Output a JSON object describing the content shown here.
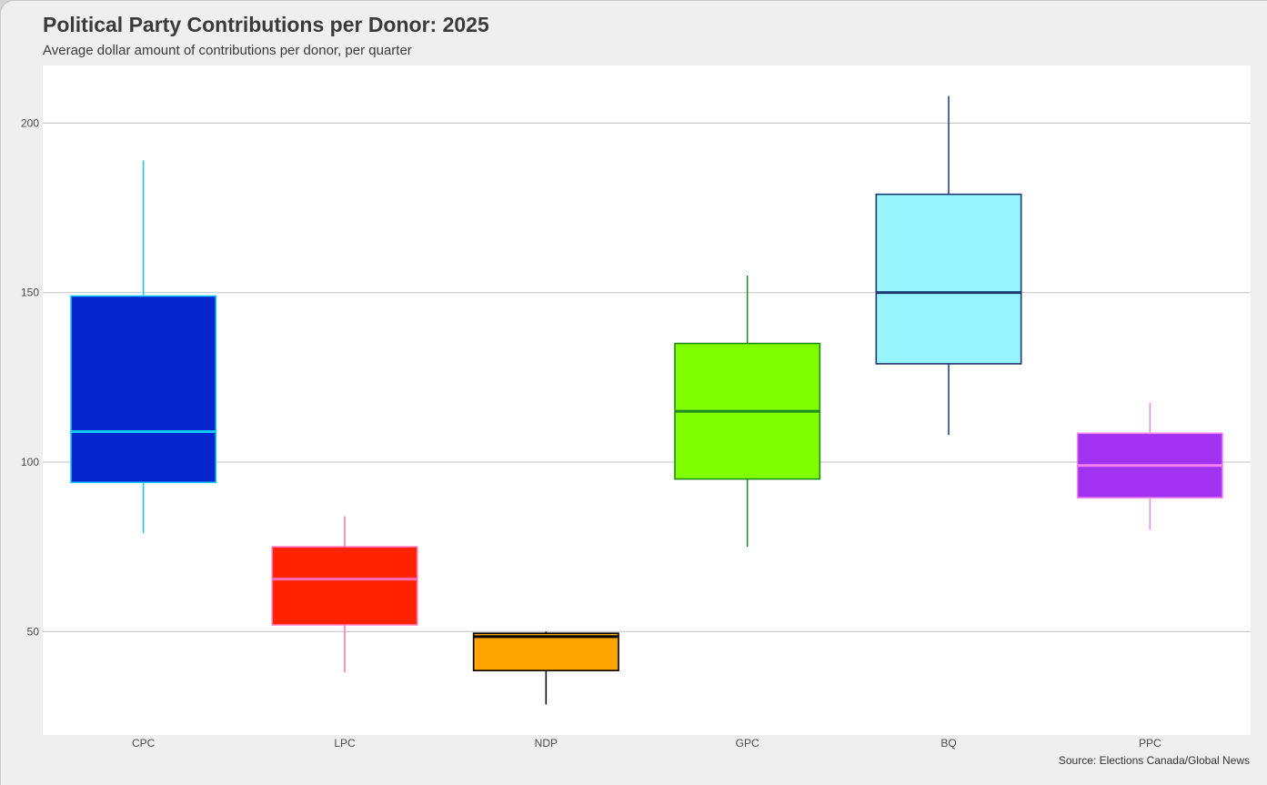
{
  "header": {
    "title": "Political Party Contributions per Donor: 2025",
    "subtitle": "Average dollar amount of contributions per donor, per quarter"
  },
  "footer": {
    "caption": "Source: Elections Canada/Global News"
  },
  "chart_data": {
    "type": "boxplot",
    "title": "Political Party Contributions per Donor: 2025",
    "subtitle": "Average dollar amount of contributions per donor, per quarter",
    "xlabel": "",
    "ylabel": "",
    "ylim": [
      19.5,
      217
    ],
    "yticks": [
      50,
      100,
      150,
      200
    ],
    "grid": true,
    "legend": "none",
    "categories": [
      "CPC",
      "LPC",
      "NDP",
      "GPC",
      "BQ",
      "PPC"
    ],
    "series": [
      {
        "category": "CPC",
        "min": 79,
        "q1": 94,
        "median": 109,
        "q3": 149,
        "max": 189,
        "fill": "#0627cf",
        "stroke": "#16c8f5"
      },
      {
        "category": "LPC",
        "min": 38,
        "q1": 52,
        "median": 65.5,
        "q3": 75,
        "max": 84,
        "fill": "#ff2300",
        "stroke": "#ff6eb4"
      },
      {
        "category": "NDP",
        "min": 28.5,
        "q1": 38.5,
        "median": 48.5,
        "q3": 49.5,
        "max": 50,
        "fill": "#ffa500",
        "stroke": "#000000"
      },
      {
        "category": "GPC",
        "min": 75,
        "q1": 95,
        "median": 115,
        "q3": 135,
        "max": 155,
        "fill": "#80ff00",
        "stroke": "#1f8b1f"
      },
      {
        "category": "BQ",
        "min": 108,
        "q1": 129,
        "median": 150,
        "q3": 179,
        "max": 208,
        "fill": "#98f5ff",
        "stroke": "#1a3a70"
      },
      {
        "category": "PPC",
        "min": 80,
        "q1": 89.5,
        "median": 99,
        "q3": 108.5,
        "max": 117.5,
        "fill": "#a133f0",
        "stroke": "#ee82ee"
      }
    ],
    "colors": {
      "panel_background": "#ffffff",
      "plot_background": "#efefef",
      "grid": "#cccccc"
    }
  }
}
